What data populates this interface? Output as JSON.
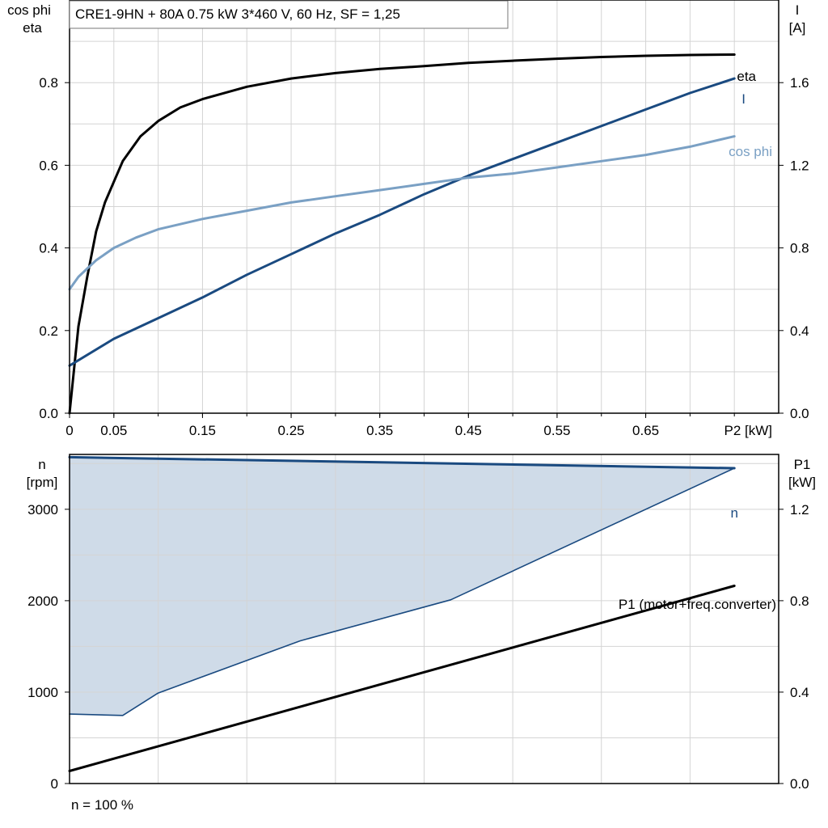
{
  "chart_data": [
    {
      "type": "line",
      "title": "CRE1-9HN + 80A   0.75 kW   3*460 V, 60 Hz, SF = 1,25",
      "xlabel": "P2 [kW]",
      "ylabel_left": [
        "cos phi",
        "eta"
      ],
      "ylabel_right": [
        "I",
        "[A]"
      ],
      "x_ticks": [
        "0",
        "0.05",
        "0.15",
        "0.25",
        "0.35",
        "0.45",
        "0.55",
        "0.65"
      ],
      "x_tick_values": [
        0,
        0.05,
        0.15,
        0.25,
        0.35,
        0.45,
        0.55,
        0.65
      ],
      "xlim": [
        0,
        0.8
      ],
      "y_left_ticks": [
        "0.0",
        "0.2",
        "0.4",
        "0.6",
        "0.8"
      ],
      "y_left_tick_values": [
        0,
        0.2,
        0.4,
        0.6,
        0.8
      ],
      "ylim_left": [
        0,
        1.0
      ],
      "y_right_ticks": [
        "0.0",
        "0.4",
        "0.8",
        "1.2",
        "1.6"
      ],
      "y_right_tick_values": [
        0,
        0.4,
        0.8,
        1.2,
        1.6
      ],
      "ylim_right": [
        0,
        2.0
      ],
      "grid": true,
      "series": [
        {
          "name": "eta",
          "axis": "left",
          "color": "#000000",
          "x": [
            0,
            0.01,
            0.02,
            0.03,
            0.04,
            0.05,
            0.06,
            0.08,
            0.1,
            0.125,
            0.15,
            0.2,
            0.25,
            0.3,
            0.35,
            0.4,
            0.45,
            0.5,
            0.55,
            0.6,
            0.65,
            0.7,
            0.75
          ],
          "y": [
            0,
            0.21,
            0.33,
            0.44,
            0.51,
            0.56,
            0.61,
            0.67,
            0.707,
            0.74,
            0.76,
            0.79,
            0.81,
            0.823,
            0.833,
            0.84,
            0.848,
            0.853,
            0.858,
            0.862,
            0.865,
            0.867,
            0.868
          ]
        },
        {
          "name": "I",
          "axis": "right",
          "color": "#1a4a80",
          "x": [
            0,
            0.05,
            0.1,
            0.15,
            0.2,
            0.25,
            0.3,
            0.35,
            0.4,
            0.45,
            0.5,
            0.55,
            0.6,
            0.65,
            0.7,
            0.75
          ],
          "y": [
            0.23,
            0.36,
            0.46,
            0.56,
            0.67,
            0.77,
            0.87,
            0.96,
            1.06,
            1.15,
            1.23,
            1.31,
            1.39,
            1.47,
            1.55,
            1.62
          ]
        },
        {
          "name": "cos phi",
          "axis": "left",
          "color": "#7aa0c4",
          "x": [
            0,
            0.01,
            0.02,
            0.03,
            0.05,
            0.075,
            0.1,
            0.15,
            0.2,
            0.25,
            0.3,
            0.35,
            0.4,
            0.45,
            0.5,
            0.55,
            0.6,
            0.65,
            0.7,
            0.75
          ],
          "y": [
            0.3,
            0.33,
            0.35,
            0.37,
            0.4,
            0.425,
            0.445,
            0.47,
            0.49,
            0.51,
            0.525,
            0.54,
            0.555,
            0.57,
            0.58,
            0.595,
            0.61,
            0.625,
            0.645,
            0.67
          ]
        }
      ]
    },
    {
      "type": "area",
      "xlim": [
        0,
        0.8
      ],
      "x_grid_values": [
        0,
        0.1,
        0.2,
        0.3,
        0.4,
        0.5,
        0.6,
        0.7
      ],
      "ylabel_left": [
        "n",
        "[rpm]"
      ],
      "ylabel_right": [
        "P1",
        "[kW]"
      ],
      "y_left_ticks": [
        "0",
        "1000",
        "2000",
        "3000"
      ],
      "y_left_tick_values": [
        0,
        1000,
        2000,
        3000
      ],
      "ylim_left": [
        0,
        3600
      ],
      "y_right_ticks": [
        "0.0",
        "0.4",
        "0.8",
        "1.2"
      ],
      "y_right_tick_values": [
        0,
        0.4,
        0.8,
        1.2
      ],
      "ylim_right": [
        0,
        1.44
      ],
      "grid": true,
      "footnote": "n = 100 %",
      "fill_color": "#cfdbe8",
      "series": [
        {
          "name": "n",
          "axis": "left",
          "color": "#1a4a80",
          "x": [
            0,
            0.75
          ],
          "y": [
            3570,
            3450
          ]
        },
        {
          "axis": "left",
          "color": "#1a4a80",
          "x": [
            0,
            0.06,
            0.1,
            0.26,
            0.43,
            0.75
          ],
          "y": [
            760,
            745,
            990,
            1560,
            2010,
            3450
          ]
        },
        {
          "name": "P1 (motor+freq.converter)",
          "axis": "right",
          "color": "#000000",
          "x": [
            0,
            0.75
          ],
          "y": [
            0.055,
            0.865
          ]
        }
      ]
    }
  ]
}
